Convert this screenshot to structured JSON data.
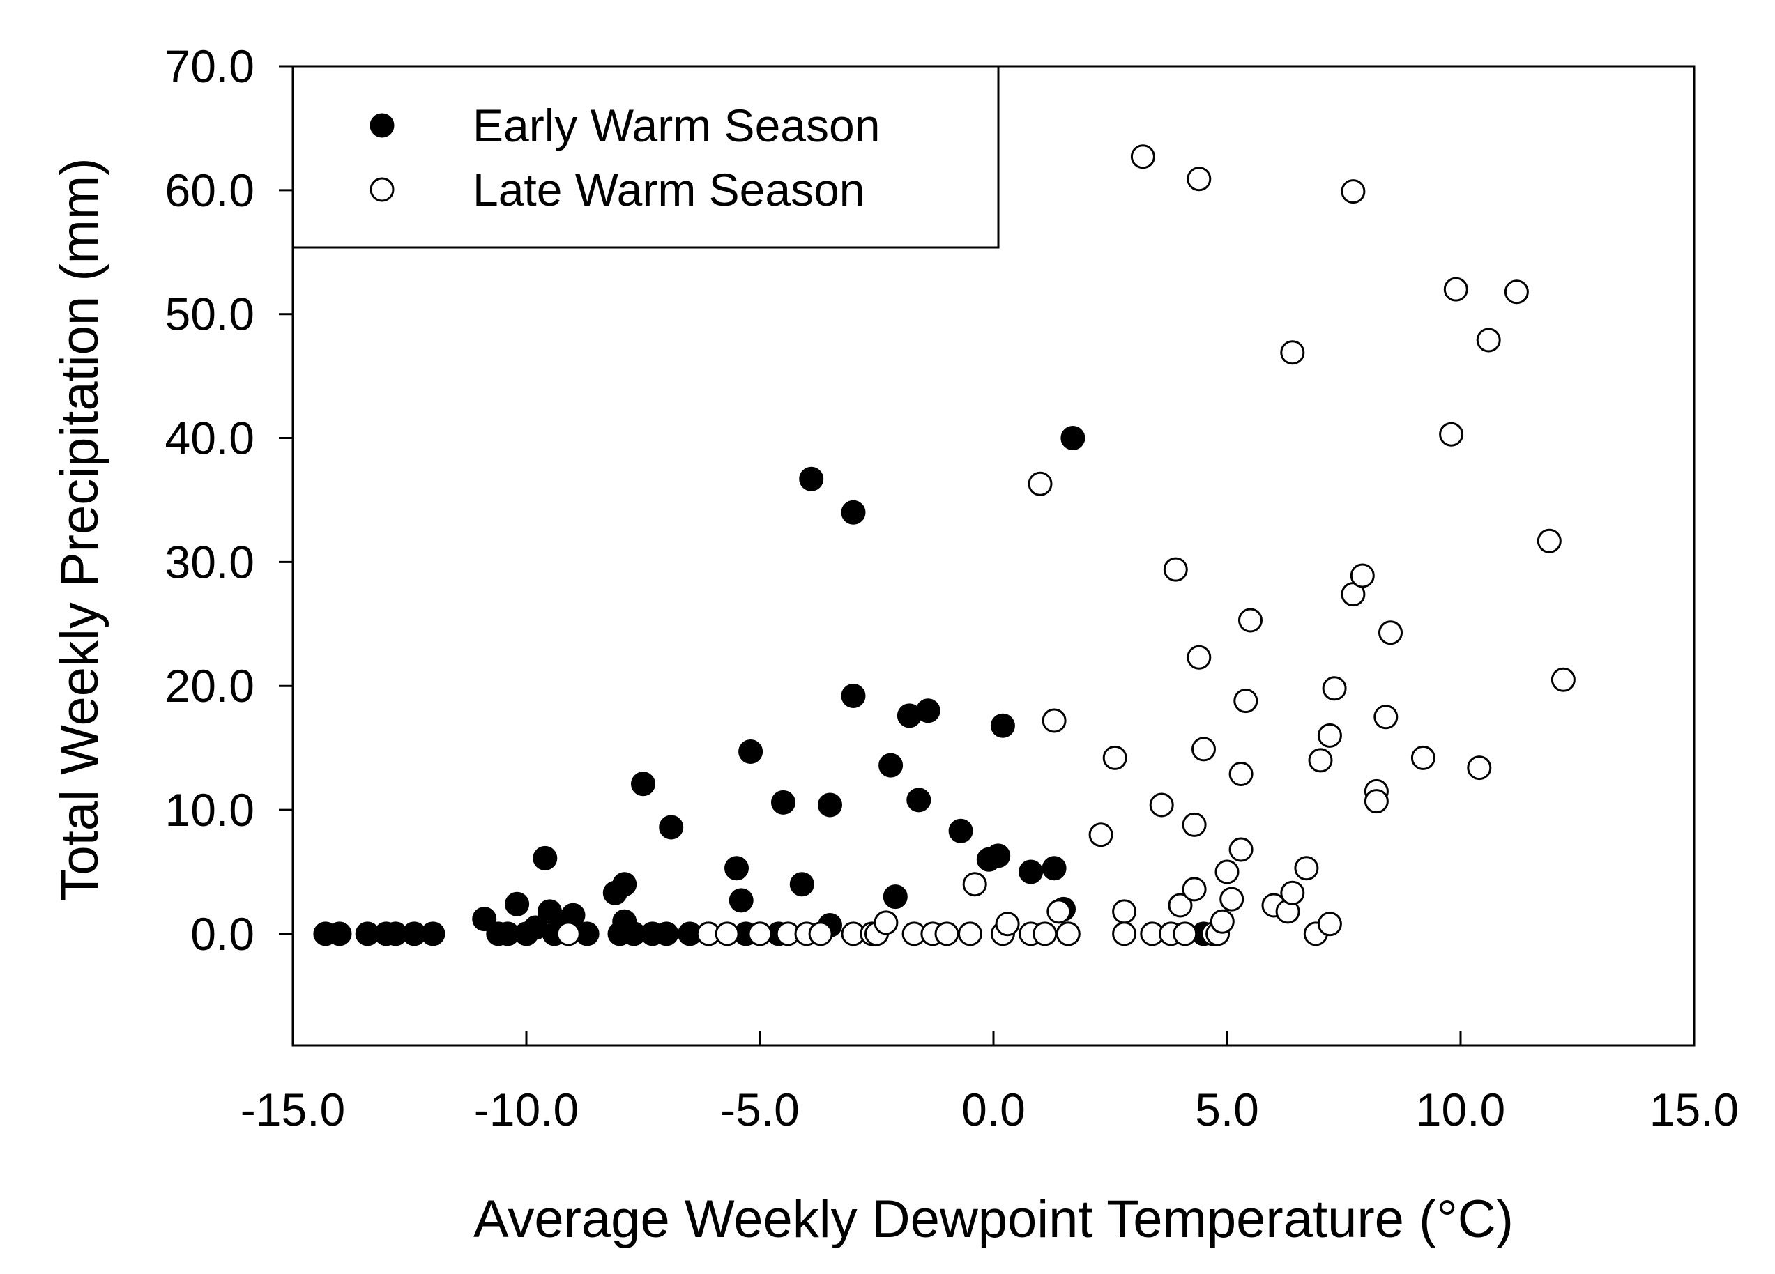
{
  "chart_data": {
    "type": "scatter",
    "title": "",
    "xlabel": "Average Weekly Dewpoint Temperature (°C)",
    "ylabel": "Total Weekly Precipitation (mm)",
    "xlim": [
      -15,
      15
    ],
    "ylim": [
      -9,
      70
    ],
    "x_ticks": [
      -15,
      -10,
      -5,
      0,
      5,
      10,
      15
    ],
    "x_tick_labels": [
      "-15.0",
      "-10.0",
      "-5.0",
      "0.0",
      "5.0",
      "10.0",
      "15.0"
    ],
    "y_ticks": [
      0,
      10,
      20,
      30,
      40,
      50,
      60,
      70
    ],
    "y_tick_labels": [
      "0.0",
      "10.0",
      "20.0",
      "30.0",
      "40.0",
      "50.0",
      "60.0",
      "70.0"
    ],
    "legend_position": "top-left",
    "series": [
      {
        "name": "Early Warm Season",
        "marker": "filled-circle",
        "color": "#000000",
        "points": [
          [
            -14.3,
            0
          ],
          [
            -14.0,
            0
          ],
          [
            -13.4,
            0
          ],
          [
            -13.0,
            0
          ],
          [
            -12.8,
            0
          ],
          [
            -12.4,
            0
          ],
          [
            -12.0,
            0
          ],
          [
            -10.9,
            1.2
          ],
          [
            -10.6,
            0
          ],
          [
            -10.4,
            0
          ],
          [
            -10.0,
            0
          ],
          [
            -10.2,
            2.4
          ],
          [
            -9.8,
            0.5
          ],
          [
            -9.6,
            6.1
          ],
          [
            -9.5,
            1.8
          ],
          [
            -9.4,
            0
          ],
          [
            -9.2,
            1.0
          ],
          [
            -9.0,
            1.5
          ],
          [
            -8.7,
            0
          ],
          [
            -8.1,
            3.3
          ],
          [
            -7.9,
            4.0
          ],
          [
            -7.9,
            1.0
          ],
          [
            -8.0,
            0
          ],
          [
            -7.7,
            0
          ],
          [
            -7.5,
            12.1
          ],
          [
            -7.3,
            0
          ],
          [
            -7.0,
            0
          ],
          [
            -6.9,
            8.6
          ],
          [
            -6.5,
            0
          ],
          [
            -6.1,
            0
          ],
          [
            -5.5,
            5.3
          ],
          [
            -5.4,
            2.7
          ],
          [
            -5.3,
            0
          ],
          [
            -5.2,
            14.7
          ],
          [
            -5.0,
            0
          ],
          [
            -4.6,
            0
          ],
          [
            -4.5,
            10.6
          ],
          [
            -4.1,
            4.0
          ],
          [
            -3.9,
            36.7
          ],
          [
            -3.5,
            10.4
          ],
          [
            -3.5,
            0.7
          ],
          [
            -3.0,
            34.0
          ],
          [
            -3.0,
            19.2
          ],
          [
            -2.2,
            13.6
          ],
          [
            -2.1,
            3.0
          ],
          [
            -1.8,
            17.6
          ],
          [
            -1.6,
            10.8
          ],
          [
            -1.4,
            18.0
          ],
          [
            -0.7,
            8.3
          ],
          [
            -0.1,
            6.0
          ],
          [
            0.1,
            6.3
          ],
          [
            0.2,
            16.8
          ],
          [
            0.8,
            5.0
          ],
          [
            1.3,
            5.3
          ],
          [
            1.5,
            2.0
          ],
          [
            1.6,
            0
          ],
          [
            1.7,
            40.0
          ],
          [
            4.5,
            0
          ]
        ]
      },
      {
        "name": "Late Warm Season",
        "marker": "open-circle",
        "color": "#000000",
        "points": [
          [
            -9.1,
            0
          ],
          [
            -6.1,
            0
          ],
          [
            -5.7,
            0
          ],
          [
            -5.0,
            0
          ],
          [
            -4.4,
            0
          ],
          [
            -4.0,
            0
          ],
          [
            -3.7,
            0
          ],
          [
            -3.0,
            0
          ],
          [
            -2.6,
            0
          ],
          [
            -2.5,
            0
          ],
          [
            -2.3,
            0.9
          ],
          [
            -1.7,
            0
          ],
          [
            -1.3,
            0
          ],
          [
            -1.0,
            0
          ],
          [
            -0.4,
            4.0
          ],
          [
            -0.5,
            0
          ],
          [
            0.2,
            0
          ],
          [
            0.3,
            0.8
          ],
          [
            0.8,
            0
          ],
          [
            1.0,
            36.3
          ],
          [
            1.1,
            0
          ],
          [
            1.3,
            17.2
          ],
          [
            1.4,
            1.8
          ],
          [
            1.6,
            0
          ],
          [
            2.3,
            8.0
          ],
          [
            2.6,
            14.2
          ],
          [
            2.8,
            1.8
          ],
          [
            2.8,
            0
          ],
          [
            3.2,
            62.7
          ],
          [
            3.4,
            0
          ],
          [
            3.6,
            10.4
          ],
          [
            3.8,
            0
          ],
          [
            3.9,
            29.4
          ],
          [
            4.0,
            2.3
          ],
          [
            4.1,
            0
          ],
          [
            4.3,
            8.8
          ],
          [
            4.3,
            3.6
          ],
          [
            4.4,
            22.3
          ],
          [
            4.4,
            60.9
          ],
          [
            4.5,
            14.9
          ],
          [
            4.7,
            0
          ],
          [
            4.8,
            0
          ],
          [
            4.9,
            1.0
          ],
          [
            5.0,
            5.0
          ],
          [
            5.1,
            2.8
          ],
          [
            5.3,
            6.8
          ],
          [
            5.3,
            12.9
          ],
          [
            5.4,
            18.8
          ],
          [
            5.5,
            25.3
          ],
          [
            6.0,
            2.3
          ],
          [
            6.3,
            1.8
          ],
          [
            6.4,
            46.9
          ],
          [
            6.4,
            3.3
          ],
          [
            6.7,
            5.3
          ],
          [
            6.9,
            0
          ],
          [
            7.0,
            14.0
          ],
          [
            7.2,
            16.0
          ],
          [
            7.2,
            0.8
          ],
          [
            7.3,
            19.8
          ],
          [
            7.7,
            59.9
          ],
          [
            7.7,
            27.4
          ],
          [
            7.9,
            28.9
          ],
          [
            8.2,
            11.5
          ],
          [
            8.2,
            10.7
          ],
          [
            8.4,
            17.5
          ],
          [
            8.5,
            24.3
          ],
          [
            9.2,
            14.2
          ],
          [
            9.8,
            40.3
          ],
          [
            9.9,
            52.0
          ],
          [
            10.4,
            13.4
          ],
          [
            10.6,
            47.9
          ],
          [
            11.2,
            51.8
          ],
          [
            11.9,
            31.7
          ],
          [
            12.2,
            20.5
          ]
        ]
      }
    ]
  }
}
